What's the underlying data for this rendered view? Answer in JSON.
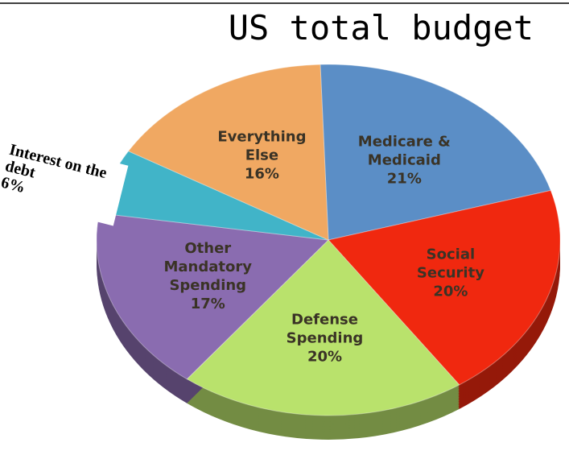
{
  "chart_data": {
    "type": "pie",
    "title": "US total budget",
    "categories": [
      "Medicare & Medicaid",
      "Social Security",
      "Defense Spending",
      "Other Mandatory Spending",
      "Interest on the debt",
      "Everything Else"
    ],
    "values": [
      21,
      20,
      20,
      17,
      6,
      16
    ],
    "value_labels": [
      "21%",
      "20%",
      "20%",
      "17%",
      "6%",
      "16%"
    ],
    "colors": [
      "#5b8ec6",
      "#f0280f",
      "#b9e26c",
      "#8a6cb0",
      "#41b4c8",
      "#f0a862"
    ]
  }
}
